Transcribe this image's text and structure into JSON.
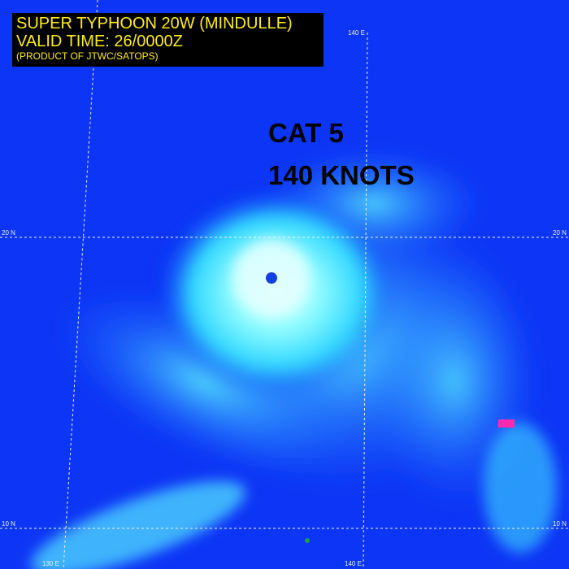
{
  "header": {
    "title": "SUPER TYPHOON 20W (MINDULLE)",
    "valid_time": "VALID TIME: 26/0000Z",
    "product": "(PRODUCT OF JTWC/SATOPS)"
  },
  "annotation": {
    "category": "CAT 5",
    "intensity": "140 KNOTS"
  },
  "grid_labels": {
    "lon_140_top": "140 E",
    "lat_20_left": "20 N",
    "lat_20_right": "20 N",
    "lat_10_left": "10 N",
    "lat_10_right": "10 N",
    "lon_130_bottom": "130 E",
    "lon_140_bottom": "140 E"
  },
  "colors": {
    "ocean": "#0d35f5",
    "cloud": "#40f0ff",
    "eyewall": "#c8ffff",
    "title_text": "#ffec1a",
    "title_bg": "#000000"
  }
}
